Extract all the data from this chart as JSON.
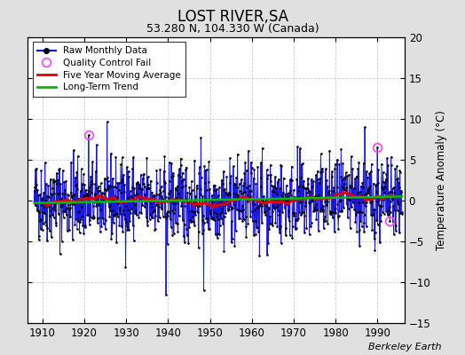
{
  "title": "LOST RIVER,SA",
  "subtitle": "53.280 N, 104.330 W (Canada)",
  "ylabel": "Temperature Anomaly (°C)",
  "attribution": "Berkeley Earth",
  "y_lim": [
    -15,
    20
  ],
  "y_ticks": [
    -15,
    -10,
    -5,
    0,
    5,
    10,
    15,
    20
  ],
  "x_ticks": [
    1910,
    1920,
    1930,
    1940,
    1950,
    1960,
    1970,
    1980,
    1990
  ],
  "background_color": "#e0e0e0",
  "plot_bg_color": "#ffffff",
  "raw_color": "#0000dd",
  "ma_color": "#dd0000",
  "trend_color": "#00bb00",
  "qc_color": "#ff44ff",
  "seed": 42
}
